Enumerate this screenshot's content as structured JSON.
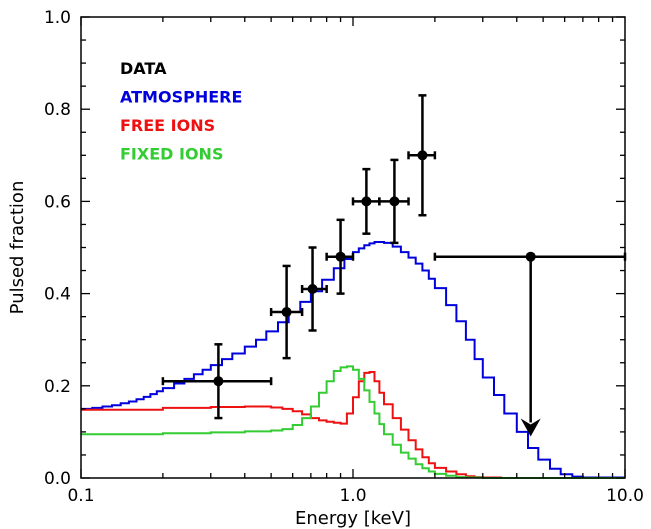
{
  "chart_data": {
    "type": "line",
    "xlabel": "Energy  [keV]",
    "ylabel": "Pulsed fraction",
    "xscale": "log",
    "xlim": [
      0.1,
      10.0
    ],
    "ylim": [
      0.0,
      1.0
    ],
    "x_ticks": [
      {
        "value": 0.1,
        "label": "0.1"
      },
      {
        "value": 1.0,
        "label": "1.0"
      },
      {
        "value": 10.0,
        "label": "10.0"
      }
    ],
    "y_ticks": [
      {
        "value": 0.0,
        "label": "0.0"
      },
      {
        "value": 0.2,
        "label": "0.2"
      },
      {
        "value": 0.4,
        "label": "0.4"
      },
      {
        "value": 0.6,
        "label": "0.6"
      },
      {
        "value": 0.8,
        "label": "0.8"
      },
      {
        "value": 1.0,
        "label": "1.0"
      }
    ],
    "legend": {
      "placement": "top-left",
      "entries": [
        {
          "label": "DATA",
          "color": "#000000"
        },
        {
          "label": "ATMOSPHERE",
          "color": "#0000dd"
        },
        {
          "label": "FREE IONS",
          "color": "#ee1111"
        },
        {
          "label": "FIXED IONS",
          "color": "#33cc33"
        }
      ]
    },
    "data_points": [
      {
        "x": 0.32,
        "y": 0.21,
        "xlo": 0.2,
        "xhi": 0.5,
        "ylo": 0.13,
        "yhi": 0.29
      },
      {
        "x": 0.57,
        "y": 0.36,
        "xlo": 0.5,
        "xhi": 0.65,
        "ylo": 0.26,
        "yhi": 0.46
      },
      {
        "x": 0.71,
        "y": 0.41,
        "xlo": 0.65,
        "xhi": 0.8,
        "ylo": 0.32,
        "yhi": 0.5
      },
      {
        "x": 0.9,
        "y": 0.48,
        "xlo": 0.8,
        "xhi": 1.0,
        "ylo": 0.4,
        "yhi": 0.56
      },
      {
        "x": 1.12,
        "y": 0.6,
        "xlo": 1.0,
        "xhi": 1.25,
        "ylo": 0.53,
        "yhi": 0.67
      },
      {
        "x": 1.42,
        "y": 0.6,
        "xlo": 1.25,
        "xhi": 1.6,
        "ylo": 0.51,
        "yhi": 0.69
      },
      {
        "x": 1.8,
        "y": 0.7,
        "xlo": 1.6,
        "xhi": 2.0,
        "ylo": 0.57,
        "yhi": 0.83
      },
      {
        "x": 4.5,
        "y": 0.48,
        "xlo": 2.0,
        "xhi": 10.0,
        "upper_limit": true,
        "arrow_to": 0.09
      }
    ],
    "series": [
      {
        "name": "ATMOSPHERE",
        "color": "#0000dd",
        "step": true,
        "x": [
          0.1,
          0.11,
          0.12,
          0.13,
          0.14,
          0.15,
          0.16,
          0.17,
          0.18,
          0.19,
          0.2,
          0.22,
          0.24,
          0.26,
          0.28,
          0.3,
          0.33,
          0.36,
          0.4,
          0.44,
          0.48,
          0.53,
          0.58,
          0.64,
          0.7,
          0.77,
          0.85,
          0.93,
          1.0,
          1.05,
          1.1,
          1.15,
          1.2,
          1.25,
          1.3,
          1.4,
          1.5,
          1.6,
          1.7,
          1.8,
          1.9,
          2.0,
          2.2,
          2.4,
          2.6,
          2.8,
          3.0,
          3.3,
          3.6,
          4.0,
          4.4,
          4.8,
          5.3,
          5.8,
          6.4,
          7.0,
          10.0
        ],
        "y": [
          0.15,
          0.152,
          0.155,
          0.158,
          0.162,
          0.166,
          0.171,
          0.176,
          0.182,
          0.188,
          0.195,
          0.205,
          0.215,
          0.225,
          0.235,
          0.245,
          0.258,
          0.27,
          0.285,
          0.3,
          0.318,
          0.338,
          0.36,
          0.382,
          0.405,
          0.43,
          0.455,
          0.475,
          0.49,
          0.498,
          0.505,
          0.509,
          0.512,
          0.512,
          0.51,
          0.502,
          0.49,
          0.478,
          0.465,
          0.45,
          0.432,
          0.412,
          0.375,
          0.34,
          0.3,
          0.258,
          0.218,
          0.18,
          0.14,
          0.1,
          0.065,
          0.04,
          0.02,
          0.008,
          0.003,
          0.001,
          0.0
        ]
      },
      {
        "name": "FREE IONS",
        "color": "#ee1111",
        "step": true,
        "x": [
          0.1,
          0.2,
          0.3,
          0.4,
          0.5,
          0.55,
          0.6,
          0.65,
          0.7,
          0.75,
          0.8,
          0.85,
          0.9,
          0.95,
          1.0,
          1.05,
          1.1,
          1.15,
          1.2,
          1.25,
          1.3,
          1.4,
          1.5,
          1.6,
          1.7,
          1.8,
          1.9,
          2.0,
          2.2,
          2.4,
          2.6,
          2.8,
          3.0,
          3.5,
          10.0
        ],
        "y": [
          0.148,
          0.152,
          0.154,
          0.155,
          0.153,
          0.15,
          0.145,
          0.138,
          0.13,
          0.125,
          0.122,
          0.12,
          0.118,
          0.14,
          0.175,
          0.21,
          0.228,
          0.23,
          0.21,
          0.185,
          0.16,
          0.13,
          0.105,
          0.082,
          0.062,
          0.045,
          0.032,
          0.022,
          0.014,
          0.008,
          0.004,
          0.002,
          0.001,
          0.0,
          0.0
        ]
      },
      {
        "name": "FIXED IONS",
        "color": "#33cc33",
        "step": true,
        "x": [
          0.1,
          0.2,
          0.3,
          0.4,
          0.5,
          0.55,
          0.6,
          0.65,
          0.7,
          0.75,
          0.8,
          0.85,
          0.9,
          0.95,
          1.0,
          1.05,
          1.1,
          1.15,
          1.2,
          1.25,
          1.3,
          1.4,
          1.5,
          1.6,
          1.7,
          1.8,
          1.9,
          2.0,
          2.2,
          2.4,
          2.6,
          3.0,
          10.0
        ],
        "y": [
          0.095,
          0.097,
          0.099,
          0.101,
          0.103,
          0.106,
          0.115,
          0.13,
          0.155,
          0.185,
          0.21,
          0.232,
          0.24,
          0.242,
          0.235,
          0.215,
          0.19,
          0.165,
          0.14,
          0.117,
          0.095,
          0.072,
          0.055,
          0.042,
          0.03,
          0.021,
          0.014,
          0.009,
          0.005,
          0.002,
          0.001,
          0.0,
          0.0
        ]
      }
    ]
  }
}
